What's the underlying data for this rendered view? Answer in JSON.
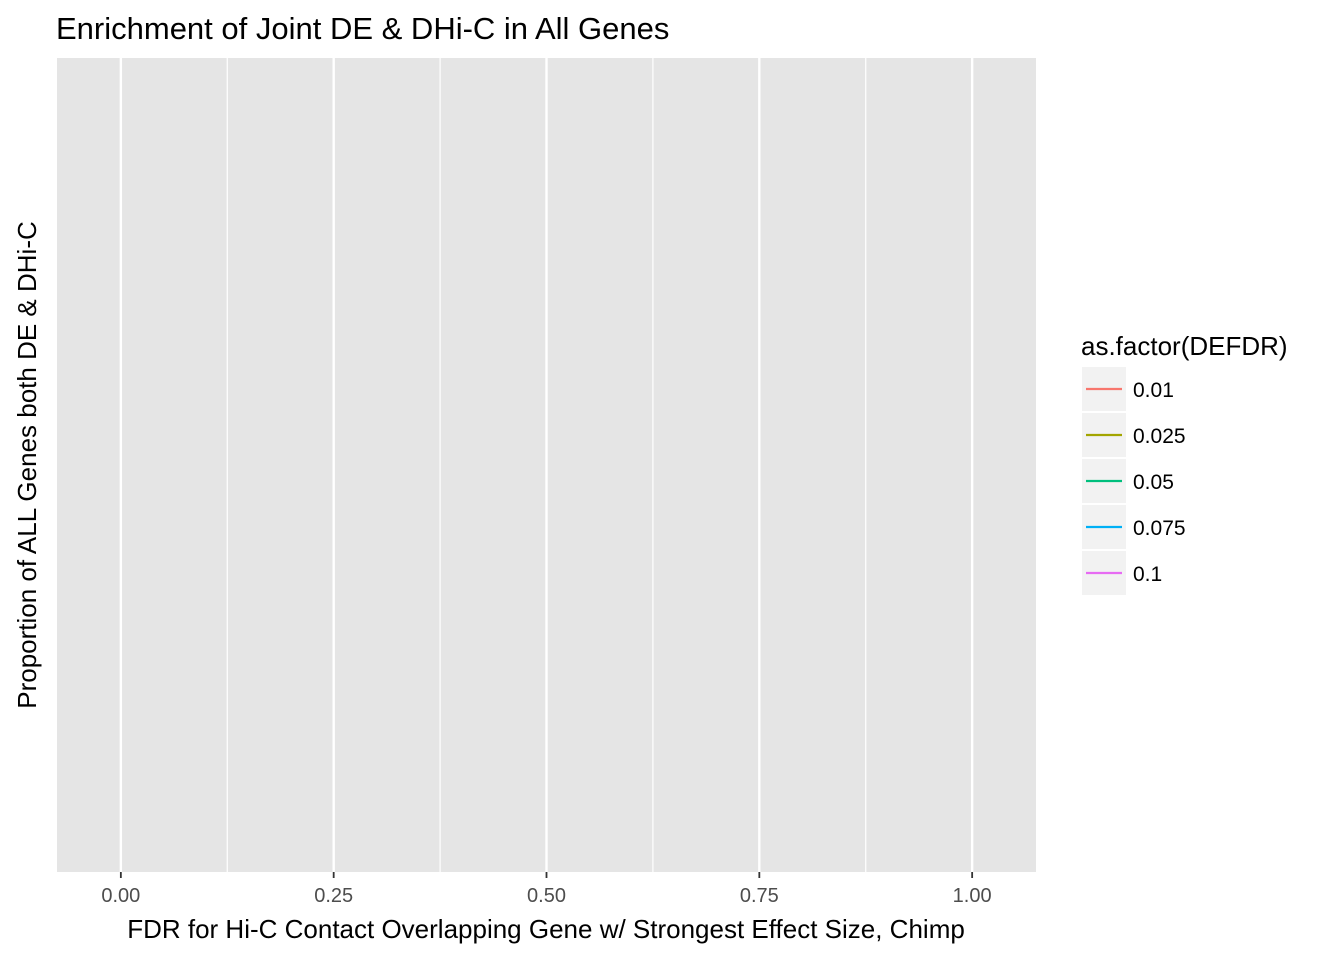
{
  "chart_data": {
    "type": "line",
    "title": "Enrichment of Joint DE & DHi-C in All Genes",
    "xlabel": "FDR for Hi-C Contact Overlapping Gene w/ Strongest Effect Size, Chimp",
    "ylabel": "Proportion of ALL Genes both DE & DHi-C",
    "xlim": [
      -0.075,
      1.075
    ],
    "x_ticks": [
      0.0,
      0.25,
      0.5,
      0.75,
      1.0
    ],
    "x_tick_labels": [
      "0.00",
      "0.25",
      "0.50",
      "0.75",
      "1.00"
    ],
    "x_minor_ticks": [
      0.125,
      0.375,
      0.625,
      0.875
    ],
    "y_ticks": [],
    "grid": true,
    "background": "#e5e5e5",
    "grid_color": "#ffffff",
    "legend": {
      "title": "as.factor(DEFDR)",
      "placement": "right"
    },
    "series": [
      {
        "name": "0.01",
        "color": "#f8766d",
        "values": []
      },
      {
        "name": "0.025",
        "color": "#a3a500",
        "values": []
      },
      {
        "name": "0.05",
        "color": "#00bf7d",
        "values": []
      },
      {
        "name": "0.075",
        "color": "#00b0f6",
        "values": []
      },
      {
        "name": "0.1",
        "color": "#e76bf3",
        "values": []
      }
    ]
  }
}
